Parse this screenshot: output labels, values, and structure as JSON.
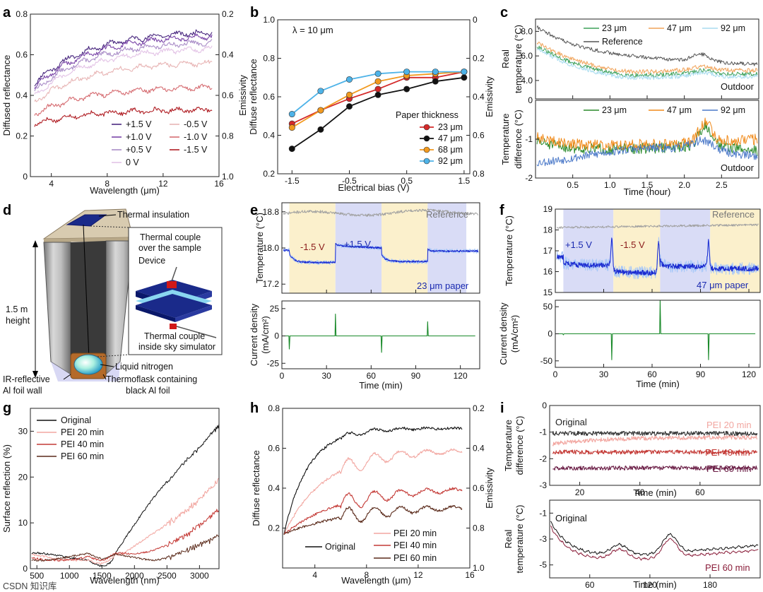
{
  "chart_data": [
    {
      "panel": "a",
      "type": "line",
      "xlabel": "Wavelength (μm)",
      "ylabel": "Diffused reflectance",
      "y2label": "Emissivity",
      "xlim": [
        2.5,
        16
      ],
      "ylim": [
        0,
        0.8
      ],
      "y2lim": [
        0.2,
        1.0
      ],
      "xticks": [
        "4",
        "8",
        "12",
        "16"
      ],
      "yticks": [
        "0",
        "0.2",
        "0.4",
        "0.6",
        "0.8"
      ],
      "y2ticks": [
        "0.2",
        "0.4",
        "0.6",
        "0.8",
        "1.0"
      ],
      "series": [
        {
          "name": "+1.5 V",
          "color": "#4b2a80",
          "start": 0.46,
          "end": 0.71
        },
        {
          "name": "+1.0 V",
          "color": "#7a45a8",
          "start": 0.44,
          "end": 0.69
        },
        {
          "name": "+0.5 V",
          "color": "#a98cc7",
          "start": 0.42,
          "end": 0.66
        },
        {
          "name": "0 V",
          "color": "#e3c3e6",
          "start": 0.4,
          "end": 0.63
        },
        {
          "name": "-0.5 V",
          "color": "#e8b5b5",
          "start": 0.37,
          "end": 0.56
        },
        {
          "name": "-1.0 V",
          "color": "#d66d72",
          "start": 0.31,
          "end": 0.44
        },
        {
          "name": "-1.5 V",
          "color": "#b01e24",
          "start": 0.26,
          "end": 0.33
        }
      ]
    },
    {
      "panel": "b",
      "type": "line",
      "title": "λ = 10 μm",
      "xlabel": "Electrical bias (V)",
      "ylabel": "Diffuse reflectance",
      "y2label": "Emissivity",
      "xlim": [
        -1.75,
        1.6
      ],
      "ylim": [
        0.2,
        1.0
      ],
      "y2lim": [
        0,
        0.8
      ],
      "xticks": [
        "-1.5",
        "-0.5",
        "0.5",
        "1.5"
      ],
      "yticks": [
        "0.2",
        "0.4",
        "0.6",
        "0.8",
        "1.0"
      ],
      "y2ticks": [
        "0",
        "0.2",
        "0.4",
        "0.6",
        "0.8"
      ],
      "x": [
        -1.5,
        -1.0,
        -0.5,
        0,
        0.5,
        1.0,
        1.5
      ],
      "legend_title": "Paper thickness",
      "series": [
        {
          "name": "23 μm",
          "color": "#d42a2a",
          "values": [
            0.46,
            0.53,
            0.59,
            0.64,
            0.7,
            0.7,
            0.73
          ]
        },
        {
          "name": "47 μm",
          "color": "#111111",
          "values": [
            0.33,
            0.43,
            0.55,
            0.61,
            0.64,
            0.68,
            0.7
          ]
        },
        {
          "name": "68 μm",
          "color": "#f29a1f",
          "values": [
            0.44,
            0.53,
            0.61,
            0.68,
            0.71,
            0.72,
            0.73
          ]
        },
        {
          "name": "92 μm",
          "color": "#4eb3e8",
          "values": [
            0.51,
            0.63,
            0.69,
            0.72,
            0.73,
            0.73,
            0.73
          ]
        }
      ]
    },
    {
      "panel": "c-top",
      "type": "line",
      "ylabel": "Real temperature (°C)",
      "annotation": "Outdoor",
      "xlim": [
        0,
        3
      ],
      "ylim": [
        2.5,
        9
      ],
      "yticks": [
        "4.0",
        "6.0",
        "8.0"
      ],
      "series": [
        {
          "name": "23 μm",
          "color": "#3da05a"
        },
        {
          "name": "47 μm",
          "color": "#f0a35a"
        },
        {
          "name": "92 μm",
          "color": "#a8dcef"
        },
        {
          "name": "Reference",
          "color": "#555555"
        }
      ]
    },
    {
      "panel": "c-bottom",
      "type": "line",
      "xlabel": "Time (hour)",
      "ylabel": "Temperature difference (°C)",
      "annotation": "Outdoor",
      "xlim": [
        0,
        3
      ],
      "ylim": [
        -2,
        0
      ],
      "xticks": [
        "0.5",
        "1.0",
        "1.5",
        "2.0",
        "2.5"
      ],
      "yticks": [
        "-2",
        "-1",
        "0"
      ],
      "series": [
        {
          "name": "23 μm",
          "color": "#2a8a2a"
        },
        {
          "name": "47 μm",
          "color": "#f08a1a"
        },
        {
          "name": "92 μm",
          "color": "#4a78c8"
        }
      ]
    },
    {
      "panel": "e",
      "type": "line",
      "ylabel": "Temperature (°C)",
      "y2label": "Current density (mA/cm²)",
      "xlabel": "Time (min)",
      "top_ylim": [
        17.0,
        19.0
      ],
      "top_yticks": [
        "17.2",
        "18.0",
        "18.8"
      ],
      "bottom_ylim": [
        -30,
        32
      ],
      "bottom_yticks": [
        "-25",
        "0",
        "25"
      ],
      "xlim": [
        0,
        133
      ],
      "xticks": [
        "0",
        "30",
        "60",
        "90",
        "120"
      ],
      "labels": {
        "reference": "Reference",
        "neg": "-1.5 V",
        "pos": "+1.5 V",
        "sample": "23 μm paper"
      },
      "bands": [
        {
          "from": 5,
          "to": 36,
          "bias": "-1.5 V"
        },
        {
          "from": 36,
          "to": 67,
          "bias": "+1.5 V"
        },
        {
          "from": 67,
          "to": 98,
          "bias": "-1.5 V"
        },
        {
          "from": 98,
          "to": 124,
          "bias": "+1.5 V"
        }
      ]
    },
    {
      "panel": "f",
      "type": "line",
      "ylabel": "Temperature (°C)",
      "y2label": "Current density (mA/cm²)",
      "xlabel": "Time (min)",
      "top_ylim": [
        15,
        19
      ],
      "top_yticks": [
        "15",
        "16",
        "17",
        "18",
        "19"
      ],
      "bottom_ylim": [
        -62,
        62
      ],
      "bottom_yticks": [
        "-50",
        "0",
        "50"
      ],
      "xlim": [
        0,
        127
      ],
      "xticks": [
        "0",
        "30",
        "60",
        "90",
        "120"
      ],
      "labels": {
        "reference": "Reference",
        "pos": "+1.5 V",
        "neg": "-1.5 V",
        "sample": "47 μm paper"
      },
      "bands": [
        {
          "from": 5,
          "to": 36,
          "bias": "+1.5 V"
        },
        {
          "from": 36,
          "to": 65,
          "bias": "-1.5 V"
        },
        {
          "from": 65,
          "to": 96,
          "bias": "+1.5 V"
        },
        {
          "from": 96,
          "to": 127,
          "bias": "-1.5 V"
        }
      ]
    },
    {
      "panel": "g",
      "type": "line",
      "xlabel": "Wavelength (nm)",
      "ylabel": "Surface reflection (%)",
      "xlim": [
        400,
        3300
      ],
      "ylim": [
        0,
        35
      ],
      "xticks": [
        "500",
        "1000",
        "1500",
        "2000",
        "2500",
        "3000"
      ],
      "yticks": [
        "0",
        "10",
        "20",
        "30"
      ],
      "series": [
        {
          "name": "Original",
          "color": "#111111",
          "end": 32
        },
        {
          "name": "PEI 20 min",
          "color": "#f2a6a0",
          "end": 20
        },
        {
          "name": "PEI 40 min",
          "color": "#c43a36",
          "end": 12.5
        },
        {
          "name": "PEI 60 min",
          "color": "#5a2a1a",
          "end": 6
        }
      ]
    },
    {
      "panel": "h",
      "type": "line",
      "xlabel": "Wavelength (μm)",
      "ylabel": "Diffuse reflectance",
      "y2label": "Emissivity",
      "xlim": [
        1.5,
        16
      ],
      "ylim": [
        0,
        0.8
      ],
      "y2lim": [
        0.2,
        1.0
      ],
      "xticks": [
        "4",
        "8",
        "12",
        "16"
      ],
      "yticks": [
        "0.2",
        "0.4",
        "0.6",
        "0.8"
      ],
      "y2ticks": [
        "0.2",
        "0.4",
        "0.6",
        "0.8",
        "1.0"
      ],
      "series": [
        {
          "name": "Original",
          "color": "#111111",
          "end": 0.7
        },
        {
          "name": "PEI 20 min",
          "color": "#f2a6a0",
          "end": 0.59
        },
        {
          "name": "PEI 40 min",
          "color": "#c43a36",
          "end": 0.4
        },
        {
          "name": "PEI 60 min",
          "color": "#5a2a1a",
          "end": 0.31
        }
      ]
    },
    {
      "panel": "i-top",
      "type": "line",
      "xlabel": "Time (min)",
      "ylabel": "Temperature difference (°C)",
      "xlim": [
        10,
        80
      ],
      "ylim": [
        -3,
        0
      ],
      "xticks": [
        "20",
        "40",
        "60"
      ],
      "yticks": [
        "-3",
        "-2",
        "-1",
        "0"
      ],
      "series": [
        {
          "name": "Original",
          "color": "#333333",
          "value": -1.05
        },
        {
          "name": "PEI 20 min",
          "color": "#f2a6a0",
          "value": -1.45
        },
        {
          "name": "PEI 40 min",
          "color": "#c43a36",
          "value": -1.75
        },
        {
          "name": "PEI 60 min",
          "color": "#6b1e46",
          "value": -2.35
        }
      ]
    },
    {
      "panel": "i-bottom",
      "type": "line",
      "xlabel": "Time (min)",
      "ylabel": "Real temperature (°C)",
      "xlim": [
        20,
        230
      ],
      "ylim": [
        -6,
        0
      ],
      "xticks": [
        "60",
        "120",
        "180"
      ],
      "yticks": [
        "-5",
        "-3",
        "-1"
      ],
      "series": [
        {
          "name": "Original",
          "color": "#111111"
        },
        {
          "name": "PEI 60 min",
          "color": "#8a1e3a"
        }
      ]
    }
  ],
  "diagram_d": {
    "thermal_insulation": "Thermal insulation",
    "couple_top_1": "Thermal couple",
    "couple_top_2": "over the sample",
    "device": "Device",
    "height_1": "1.5 m",
    "height_2": "height",
    "liquid_nitrogen": "Liquid nitrogen",
    "foil_wall_1": "IR-reflective",
    "foil_wall_2": "Al foil wall",
    "thermoflask_1": "Thermoflask containing",
    "thermoflask_2": "black Al foil",
    "couple_bottom_1": "Thermal couple",
    "couple_bottom_2": "inside sky simulator"
  },
  "panel_letters": [
    "a",
    "b",
    "c",
    "d",
    "e",
    "f",
    "g",
    "h",
    "i"
  ],
  "watermark": "CSDN 知识库"
}
